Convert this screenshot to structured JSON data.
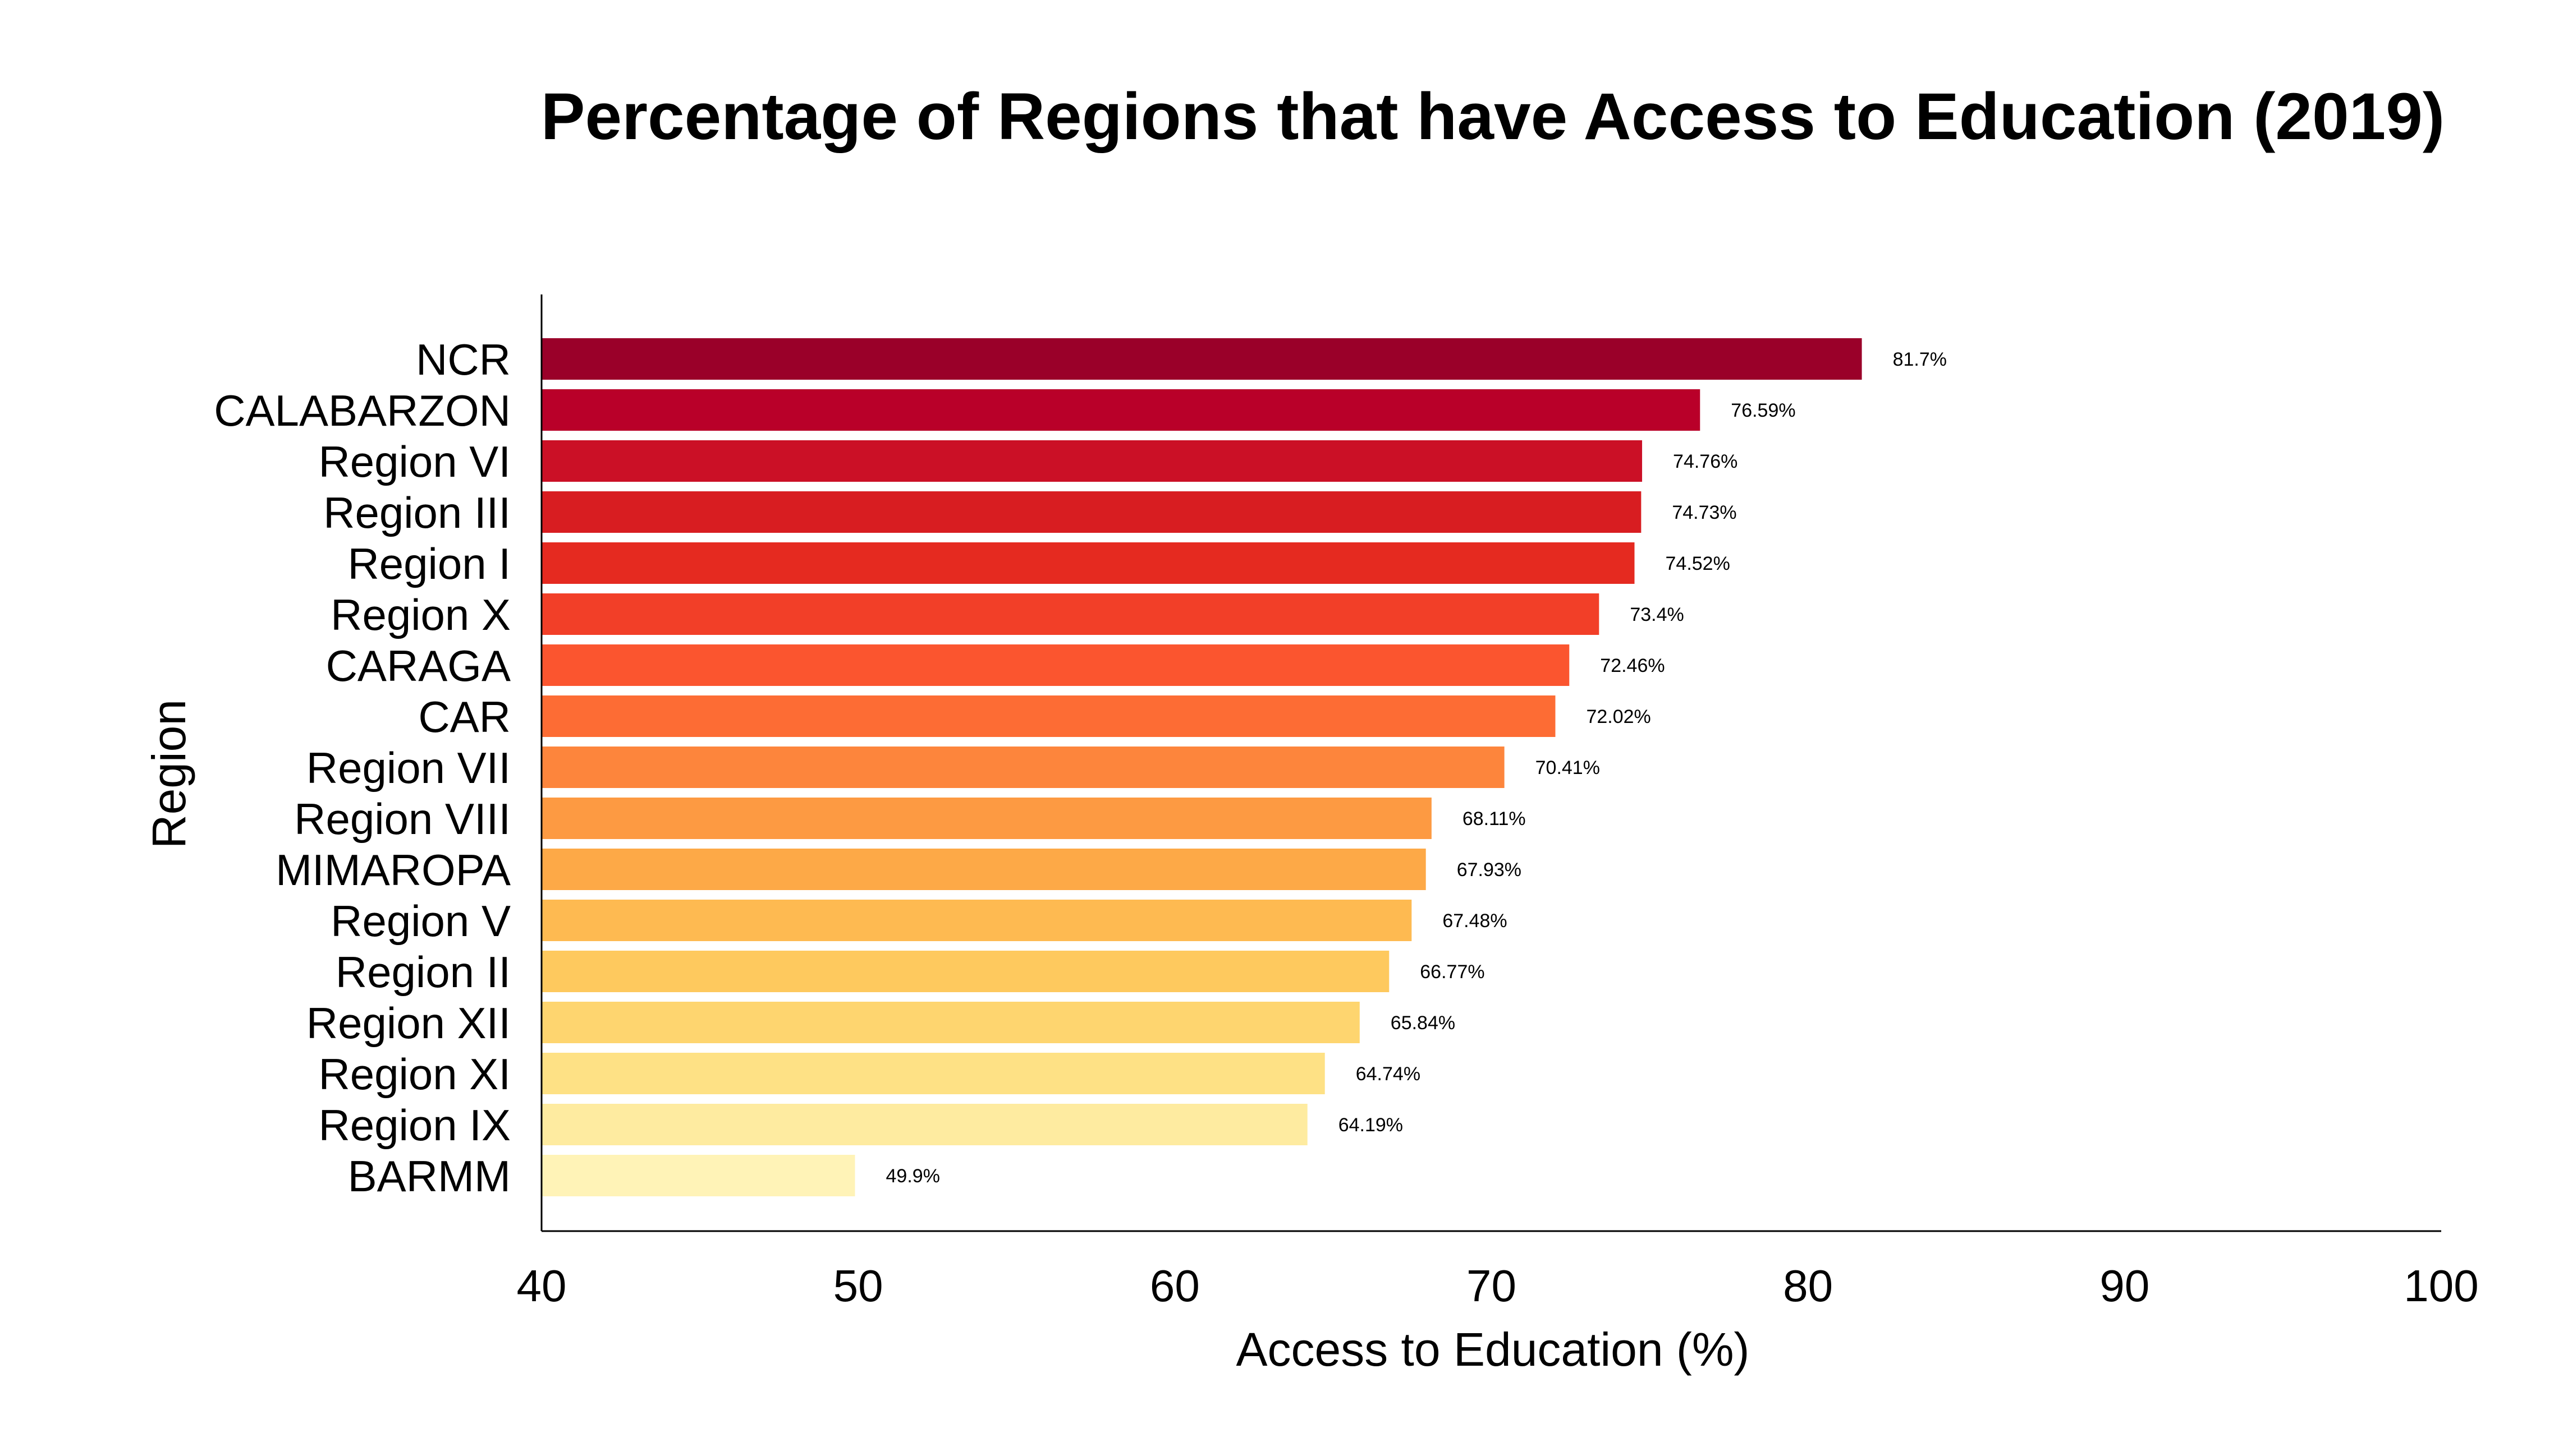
{
  "chart_data": {
    "type": "bar",
    "orientation": "horizontal",
    "title": "Percentage of Regions that have Access to Education (2019)",
    "xlabel": "Access to Education (%)",
    "ylabel": "Region",
    "xlim": [
      40,
      100
    ],
    "xticks": [
      40,
      50,
      60,
      70,
      80,
      90,
      100
    ],
    "grid": false,
    "categories": [
      "NCR",
      "CALABARZON",
      "Region VI",
      "Region III",
      "Region I",
      "Region X",
      "CARAGA",
      "CAR",
      "Region VII",
      "Region VIII",
      "MIMAROPA",
      "Region V",
      "Region II",
      "Region XII",
      "Region XI",
      "Region IX",
      "BARMM"
    ],
    "values": [
      81.7,
      76.59,
      74.76,
      74.73,
      74.52,
      73.4,
      72.46,
      72.02,
      70.41,
      68.11,
      67.93,
      67.48,
      66.77,
      65.84,
      64.74,
      64.19,
      49.9
    ],
    "data_labels": [
      "81.7%",
      "76.59%",
      "74.76%",
      "74.73%",
      "74.52%",
      "73.4%",
      "72.46%",
      "72.02%",
      "70.41%",
      "68.11%",
      "67.93%",
      "67.48%",
      "66.77%",
      "65.84%",
      "64.74%",
      "64.19%",
      "49.9%"
    ],
    "colors": [
      "#9a0029",
      "#b90029",
      "#cb1026",
      "#d81d21",
      "#e52a20",
      "#f23f28",
      "#fb552f",
      "#fd6c34",
      "#fd853c",
      "#fd9a42",
      "#fda947",
      "#feba51",
      "#fec95e",
      "#fed56f",
      "#fee185",
      "#feeba0",
      "#fff3b7"
    ]
  }
}
